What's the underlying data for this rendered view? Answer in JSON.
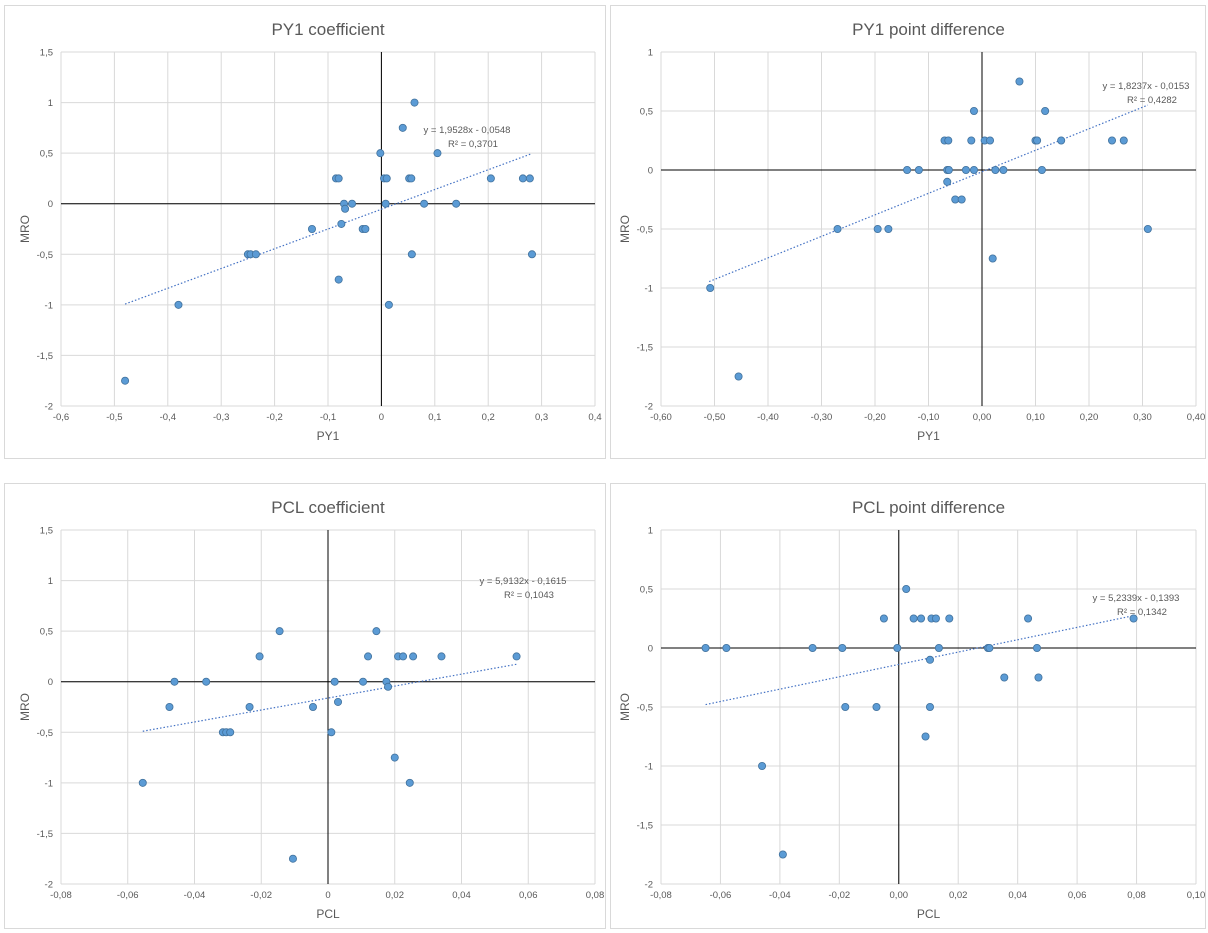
{
  "colors": {
    "point_fill": "#5b9bd5",
    "point_stroke": "#41719c",
    "trend": "#4472c4",
    "grid": "#d9d9d9",
    "axis": "#000000",
    "text": "#595959"
  },
  "chart_data": [
    {
      "type": "scatter",
      "title": "PY1 coefficient",
      "xlabel": "PY1",
      "ylabel": "MRO",
      "xlim": [
        -0.6,
        0.4
      ],
      "ylim": [
        -2,
        1.5
      ],
      "xticks": [
        -0.6,
        -0.5,
        -0.4,
        -0.3,
        -0.2,
        -0.1,
        0,
        0.1,
        0.2,
        0.3,
        0.4
      ],
      "yticks": [
        -2,
        -1.5,
        -1,
        -0.5,
        0,
        0.5,
        1,
        1.5
      ],
      "xtick_labels": [
        "-0,6",
        "-0,5",
        "-0,4",
        "-0,3",
        "-0,2",
        "-0,1",
        "0",
        "0,1",
        "0,2",
        "0,3",
        "0,4"
      ],
      "ytick_labels": [
        "-2",
        "-1,5",
        "-1",
        "-0,5",
        "0",
        "0,5",
        "1",
        "1,5"
      ],
      "grid": true,
      "trendline": {
        "slope": 1.9528,
        "intercept": -0.0548,
        "x_range": [
          -0.48,
          0.28
        ],
        "equation": "y = 1,9528x - 0,0548",
        "r2": "R² = 0,3701"
      },
      "points": [
        [
          -0.48,
          -1.75
        ],
        [
          -0.38,
          -1.0
        ],
        [
          -0.25,
          -0.5
        ],
        [
          -0.245,
          -0.5
        ],
        [
          -0.235,
          -0.5
        ],
        [
          -0.13,
          -0.25
        ],
        [
          -0.085,
          0.25
        ],
        [
          -0.08,
          0.25
        ],
        [
          -0.08,
          -0.75
        ],
        [
          -0.075,
          -0.2
        ],
        [
          -0.07,
          0.0
        ],
        [
          -0.068,
          -0.05
        ],
        [
          -0.055,
          0.0
        ],
        [
          -0.035,
          -0.25
        ],
        [
          -0.03,
          -0.25
        ],
        [
          -0.002,
          0.5
        ],
        [
          0.005,
          0.25
        ],
        [
          0.008,
          0.0
        ],
        [
          0.01,
          0.25
        ],
        [
          0.014,
          -1.0
        ],
        [
          0.04,
          0.75
        ],
        [
          0.052,
          0.25
        ],
        [
          0.056,
          0.25
        ],
        [
          0.057,
          -0.5
        ],
        [
          0.062,
          1.0
        ],
        [
          0.08,
          0.0
        ],
        [
          0.105,
          0.5
        ],
        [
          0.14,
          0.0
        ],
        [
          0.205,
          0.25
        ],
        [
          0.265,
          0.25
        ],
        [
          0.278,
          0.25
        ],
        [
          0.282,
          -0.5
        ]
      ]
    },
    {
      "type": "scatter",
      "title": "PY1 point difference",
      "xlabel": "PY1",
      "ylabel": "MRO",
      "xlim": [
        -0.6,
        0.4
      ],
      "ylim": [
        -2,
        1
      ],
      "xticks": [
        -0.6,
        -0.5,
        -0.4,
        -0.3,
        -0.2,
        -0.1,
        0,
        0.1,
        0.2,
        0.3,
        0.4
      ],
      "yticks": [
        -2,
        -1.5,
        -1,
        -0.5,
        0,
        0.5,
        1
      ],
      "xtick_labels": [
        "-0,60",
        "-0,50",
        "-0,40",
        "-0,30",
        "-0,20",
        "-0,10",
        "0,00",
        "0,10",
        "0,20",
        "0,30",
        "0,40"
      ],
      "ytick_labels": [
        "-2",
        "-1,5",
        "-1",
        "-0,5",
        "0",
        "0,5",
        "1"
      ],
      "grid": true,
      "trendline": {
        "slope": 1.8237,
        "intercept": -0.0153,
        "x_range": [
          -0.51,
          0.31
        ],
        "equation": "y = 1,8237x - 0,0153",
        "r2": "R² = 0,4282"
      },
      "points": [
        [
          -0.508,
          -1.0
        ],
        [
          -0.455,
          -1.75
        ],
        [
          -0.27,
          -0.5
        ],
        [
          -0.195,
          -0.5
        ],
        [
          -0.175,
          -0.5
        ],
        [
          -0.14,
          0.0
        ],
        [
          -0.118,
          0.0
        ],
        [
          -0.07,
          0.25
        ],
        [
          -0.063,
          0.25
        ],
        [
          -0.065,
          0.0
        ],
        [
          -0.062,
          0.0
        ],
        [
          -0.065,
          -0.1
        ],
        [
          -0.05,
          -0.25
        ],
        [
          -0.038,
          -0.25
        ],
        [
          -0.03,
          0.0
        ],
        [
          -0.02,
          0.25
        ],
        [
          -0.015,
          0.5
        ],
        [
          -0.015,
          0.0
        ],
        [
          0.005,
          0.25
        ],
        [
          0.015,
          0.25
        ],
        [
          0.02,
          -0.75
        ],
        [
          0.025,
          0.0
        ],
        [
          0.04,
          0.0
        ],
        [
          0.07,
          0.75
        ],
        [
          0.1,
          0.25
        ],
        [
          0.103,
          0.25
        ],
        [
          0.112,
          0.0
        ],
        [
          0.118,
          0.5
        ],
        [
          0.148,
          0.25
        ],
        [
          0.243,
          0.25
        ],
        [
          0.265,
          0.25
        ],
        [
          0.31,
          -0.5
        ]
      ]
    },
    {
      "type": "scatter",
      "title": "PCL coefficient",
      "xlabel": "PCL",
      "ylabel": "MRO",
      "xlim": [
        -0.08,
        0.08
      ],
      "ylim": [
        -2,
        1.5
      ],
      "xticks": [
        -0.08,
        -0.06,
        -0.04,
        -0.02,
        0,
        0.02,
        0.04,
        0.06,
        0.08
      ],
      "yticks": [
        -2,
        -1.5,
        -1,
        -0.5,
        0,
        0.5,
        1,
        1.5
      ],
      "xtick_labels": [
        "-0,08",
        "-0,06",
        "-0,04",
        "-0,02",
        "0",
        "0,02",
        "0,04",
        "0,06",
        "0,08"
      ],
      "ytick_labels": [
        "-2",
        "-1,5",
        "-1",
        "-0,5",
        "0",
        "0,5",
        "1",
        "1,5"
      ],
      "grid": true,
      "trendline": {
        "slope": 5.9132,
        "intercept": -0.1615,
        "x_range": [
          -0.0555,
          0.0565
        ],
        "equation": "y = 5,9132x - 0,1615",
        "r2": "R² = 0,1043"
      },
      "points": [
        [
          -0.0555,
          -1.0
        ],
        [
          -0.0475,
          -0.25
        ],
        [
          -0.046,
          0.0
        ],
        [
          -0.0365,
          0.0
        ],
        [
          -0.0315,
          -0.5
        ],
        [
          -0.0305,
          -0.5
        ],
        [
          -0.0293,
          -0.5
        ],
        [
          -0.0235,
          -0.25
        ],
        [
          -0.0205,
          0.25
        ],
        [
          -0.0145,
          0.5
        ],
        [
          -0.0105,
          -1.75
        ],
        [
          -0.0045,
          -0.25
        ],
        [
          0.001,
          -0.5
        ],
        [
          0.002,
          0.0
        ],
        [
          0.003,
          -0.2
        ],
        [
          0.0105,
          0.0
        ],
        [
          0.012,
          0.25
        ],
        [
          0.0145,
          0.5
        ],
        [
          0.0175,
          0.0
        ],
        [
          0.018,
          -0.05
        ],
        [
          0.02,
          -0.75
        ],
        [
          0.021,
          0.25
        ],
        [
          0.0225,
          0.25
        ],
        [
          0.0245,
          -1.0
        ],
        [
          0.0255,
          0.25
        ],
        [
          0.034,
          0.25
        ],
        [
          0.0565,
          0.25
        ]
      ]
    },
    {
      "type": "scatter",
      "title": "PCL point difference",
      "xlabel": "PCL",
      "ylabel": "MRO",
      "xlim": [
        -0.08,
        0.1
      ],
      "ylim": [
        -2,
        1
      ],
      "xticks": [
        -0.08,
        -0.06,
        -0.04,
        -0.02,
        0,
        0.02,
        0.04,
        0.06,
        0.08,
        0.1
      ],
      "yticks": [
        -2,
        -1.5,
        -1,
        -0.5,
        0,
        0.5,
        1
      ],
      "xtick_labels": [
        "-0,08",
        "-0,06",
        "-0,04",
        "-0,02",
        "0,00",
        "0,02",
        "0,04",
        "0,06",
        "0,08",
        "0,10"
      ],
      "ytick_labels": [
        "-2",
        "-1,5",
        "-1",
        "-0,5",
        "0",
        "0,5",
        "1"
      ],
      "grid": true,
      "trendline": {
        "slope": 5.2339,
        "intercept": -0.1393,
        "x_range": [
          -0.065,
          0.079
        ],
        "equation": "y = 5,2339x - 0,1393",
        "r2": "R² = 0,1342"
      },
      "points": [
        [
          -0.065,
          0.0
        ],
        [
          -0.058,
          0.0
        ],
        [
          -0.046,
          -1.0
        ],
        [
          -0.039,
          -1.75
        ],
        [
          -0.029,
          0.0
        ],
        [
          -0.019,
          0.0
        ],
        [
          -0.018,
          -0.5
        ],
        [
          -0.0075,
          -0.5
        ],
        [
          -0.005,
          0.25
        ],
        [
          -0.0005,
          0.0
        ],
        [
          0.0025,
          0.5
        ],
        [
          0.005,
          0.25
        ],
        [
          0.0075,
          0.25
        ],
        [
          0.009,
          -0.75
        ],
        [
          0.0105,
          -0.5
        ],
        [
          0.0105,
          -0.1
        ],
        [
          0.011,
          0.25
        ],
        [
          0.0125,
          0.25
        ],
        [
          0.0135,
          0.0
        ],
        [
          0.017,
          0.25
        ],
        [
          0.03,
          0.0
        ],
        [
          0.0305,
          0.0
        ],
        [
          0.0355,
          -0.25
        ],
        [
          0.0435,
          0.25
        ],
        [
          0.0465,
          0.0
        ],
        [
          0.047,
          -0.25
        ],
        [
          0.079,
          0.25
        ]
      ]
    }
  ]
}
